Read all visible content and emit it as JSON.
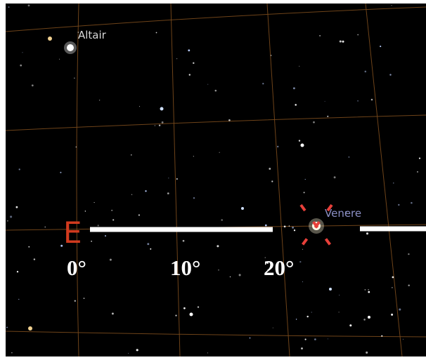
{
  "labels": {
    "star": "Altair",
    "planet": "Venere",
    "cardinal": "E",
    "scale": [
      "0°",
      "10°",
      "20°"
    ]
  }
}
